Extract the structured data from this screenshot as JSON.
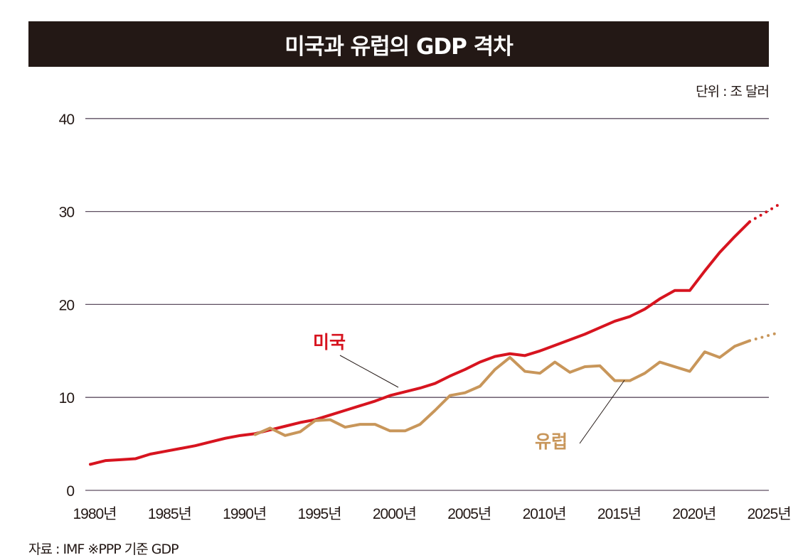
{
  "title": "미국과 유럽의 GDP 격차",
  "unit_label": "단위 : 조 달러",
  "source": "자료 : IMF ※PPP 기준 GDP",
  "chart_data": {
    "type": "line",
    "title": "미국과 유럽의 GDP 격차",
    "ylabel": "단위 : 조 달러",
    "xlim": [
      1980,
      2026
    ],
    "ylim": [
      0,
      40
    ],
    "yticks": [
      0,
      10,
      20,
      30,
      40
    ],
    "xtick_labels": [
      "1980년",
      "1985년",
      "1990년",
      "1995년",
      "2000년",
      "2005년",
      "2010년",
      "2015년",
      "2020년",
      "2025년"
    ],
    "xtick_values": [
      1980,
      1985,
      1990,
      1995,
      2000,
      2005,
      2010,
      2015,
      2020,
      2025
    ],
    "grid": "horizontal",
    "series": [
      {
        "name": "미국",
        "color": "#d7141f",
        "x": [
          1980,
          1981,
          1982,
          1983,
          1984,
          1985,
          1986,
          1987,
          1988,
          1989,
          1990,
          1991,
          1992,
          1993,
          1994,
          1995,
          1996,
          1997,
          1998,
          1999,
          2000,
          2001,
          2002,
          2003,
          2004,
          2005,
          2006,
          2007,
          2008,
          2009,
          2010,
          2011,
          2012,
          2013,
          2014,
          2015,
          2016,
          2017,
          2018,
          2019,
          2020,
          2021,
          2022,
          2023,
          2024
        ],
        "values": [
          2.8,
          3.2,
          3.3,
          3.4,
          3.9,
          4.2,
          4.5,
          4.8,
          5.2,
          5.6,
          5.9,
          6.1,
          6.5,
          6.9,
          7.3,
          7.6,
          8.1,
          8.6,
          9.1,
          9.6,
          10.2,
          10.6,
          11.0,
          11.5,
          12.3,
          13.0,
          13.8,
          14.4,
          14.7,
          14.5,
          15.0,
          15.6,
          16.2,
          16.8,
          17.5,
          18.2,
          18.7,
          19.5,
          20.6,
          21.5,
          21.5,
          23.6,
          25.6,
          27.3,
          28.9
        ],
        "projection": {
          "x": [
            2024,
            2026
          ],
          "values": [
            28.9,
            30.8
          ]
        }
      },
      {
        "name": "유럽",
        "color": "#c8965a",
        "x": [
          1991,
          1992,
          1993,
          1994,
          1995,
          1996,
          1997,
          1998,
          1999,
          2000,
          2001,
          2002,
          2003,
          2004,
          2005,
          2006,
          2007,
          2008,
          2009,
          2010,
          2011,
          2012,
          2013,
          2014,
          2015,
          2016,
          2017,
          2018,
          2019,
          2020,
          2021,
          2022,
          2023,
          2024
        ],
        "values": [
          6.0,
          6.7,
          5.9,
          6.3,
          7.5,
          7.6,
          6.8,
          7.1,
          7.1,
          6.4,
          6.4,
          7.1,
          8.6,
          10.2,
          10.5,
          11.2,
          13.0,
          14.3,
          12.8,
          12.6,
          13.8,
          12.7,
          13.3,
          13.4,
          11.8,
          11.8,
          12.6,
          13.8,
          13.3,
          12.8,
          14.9,
          14.3,
          15.5,
          16.1
        ],
        "projection": {
          "x": [
            2024,
            2026
          ],
          "values": [
            16.1,
            17.0
          ]
        }
      }
    ],
    "annotations": [
      "미국",
      "유럽"
    ]
  }
}
